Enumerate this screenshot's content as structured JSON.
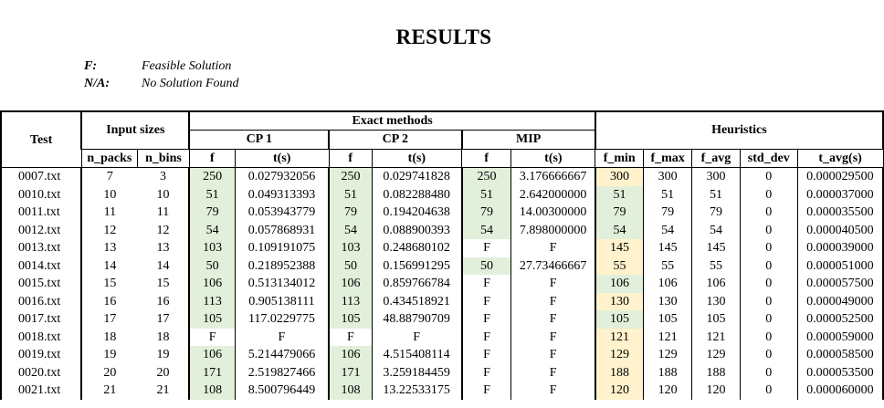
{
  "title": "RESULTS",
  "legend": [
    {
      "key": "F:",
      "value": "Feasible Solution"
    },
    {
      "key": "N/A:",
      "value": "No Solution Found"
    }
  ],
  "headers": {
    "test": "Test",
    "input_sizes": "Input sizes",
    "n_packs": "n_packs",
    "n_bins": "n_bins",
    "exact_methods": "Exact methods",
    "cp1": "CP 1",
    "cp2": "CP 2",
    "mip": "MIP",
    "f": "f",
    "t": "t(s)",
    "heuristics": "Heuristics",
    "f_min": "f_min",
    "f_max": "f_max",
    "f_avg": "f_avg",
    "std_dev": "std_dev",
    "t_avg": "t_avg(s)"
  },
  "colors": {
    "optimal_green": "#e2efda",
    "heuristic_yellow": "#fff2cc"
  },
  "rows": [
    {
      "test": "0007.txt",
      "n_packs": "7",
      "n_bins": "3",
      "cp1_f": "250",
      "cp1_t": "0.027932056",
      "cp2_f": "250",
      "cp2_t": "0.029741828",
      "mip_f": "250",
      "mip_t": "3.176666667",
      "f_min": "300",
      "f_max": "300",
      "f_avg": "300",
      "std_dev": "0",
      "t_avg": "0.000029500",
      "hl": {
        "cp1_f": "g",
        "cp2_f": "g",
        "mip_f": "g",
        "f_min": "y"
      }
    },
    {
      "test": "0010.txt",
      "n_packs": "10",
      "n_bins": "10",
      "cp1_f": "51",
      "cp1_t": "0.049313393",
      "cp2_f": "51",
      "cp2_t": "0.082288480",
      "mip_f": "51",
      "mip_t": "2.642000000",
      "f_min": "51",
      "f_max": "51",
      "f_avg": "51",
      "std_dev": "0",
      "t_avg": "0.000037000",
      "hl": {
        "cp1_f": "g",
        "cp2_f": "g",
        "mip_f": "g",
        "f_min": "g"
      }
    },
    {
      "test": "0011.txt",
      "n_packs": "11",
      "n_bins": "11",
      "cp1_f": "79",
      "cp1_t": "0.053943779",
      "cp2_f": "79",
      "cp2_t": "0.194204638",
      "mip_f": "79",
      "mip_t": "14.00300000",
      "f_min": "79",
      "f_max": "79",
      "f_avg": "79",
      "std_dev": "0",
      "t_avg": "0.000035500",
      "hl": {
        "cp1_f": "g",
        "cp2_f": "g",
        "mip_f": "g",
        "f_min": "g"
      }
    },
    {
      "test": "0012.txt",
      "n_packs": "12",
      "n_bins": "12",
      "cp1_f": "54",
      "cp1_t": "0.057868931",
      "cp2_f": "54",
      "cp2_t": "0.088900393",
      "mip_f": "54",
      "mip_t": "7.898000000",
      "f_min": "54",
      "f_max": "54",
      "f_avg": "54",
      "std_dev": "0",
      "t_avg": "0.000040500",
      "hl": {
        "cp1_f": "g",
        "cp2_f": "g",
        "mip_f": "g",
        "f_min": "g"
      }
    },
    {
      "test": "0013.txt",
      "n_packs": "13",
      "n_bins": "13",
      "cp1_f": "103",
      "cp1_t": "0.109191075",
      "cp2_f": "103",
      "cp2_t": "0.248680102",
      "mip_f": "F",
      "mip_t": "F",
      "f_min": "145",
      "f_max": "145",
      "f_avg": "145",
      "std_dev": "0",
      "t_avg": "0.000039000",
      "hl": {
        "cp1_f": "g",
        "cp2_f": "g",
        "f_min": "y"
      }
    },
    {
      "test": "0014.txt",
      "n_packs": "14",
      "n_bins": "14",
      "cp1_f": "50",
      "cp1_t": "0.218952388",
      "cp2_f": "50",
      "cp2_t": "0.156991295",
      "mip_f": "50",
      "mip_t": "27.73466667",
      "f_min": "55",
      "f_max": "55",
      "f_avg": "55",
      "std_dev": "0",
      "t_avg": "0.000051000",
      "hl": {
        "cp1_f": "g",
        "cp2_f": "g",
        "mip_f": "g",
        "f_min": "y"
      }
    },
    {
      "test": "0015.txt",
      "n_packs": "15",
      "n_bins": "15",
      "cp1_f": "106",
      "cp1_t": "0.513134012",
      "cp2_f": "106",
      "cp2_t": "0.859766784",
      "mip_f": "F",
      "mip_t": "F",
      "f_min": "106",
      "f_max": "106",
      "f_avg": "106",
      "std_dev": "0",
      "t_avg": "0.000057500",
      "hl": {
        "cp1_f": "g",
        "cp2_f": "g",
        "f_min": "g"
      }
    },
    {
      "test": "0016.txt",
      "n_packs": "16",
      "n_bins": "16",
      "cp1_f": "113",
      "cp1_t": "0.905138111",
      "cp2_f": "113",
      "cp2_t": "0.434518921",
      "mip_f": "F",
      "mip_t": "F",
      "f_min": "130",
      "f_max": "130",
      "f_avg": "130",
      "std_dev": "0",
      "t_avg": "0.000049000",
      "hl": {
        "cp1_f": "g",
        "cp2_f": "g",
        "f_min": "y"
      }
    },
    {
      "test": "0017.txt",
      "n_packs": "17",
      "n_bins": "17",
      "cp1_f": "105",
      "cp1_t": "117.0229775",
      "cp2_f": "105",
      "cp2_t": "48.88790709",
      "mip_f": "F",
      "mip_t": "F",
      "f_min": "105",
      "f_max": "105",
      "f_avg": "105",
      "std_dev": "0",
      "t_avg": "0.000052500",
      "hl": {
        "cp1_f": "g",
        "cp2_f": "g",
        "f_min": "g"
      }
    },
    {
      "test": "0018.txt",
      "n_packs": "18",
      "n_bins": "18",
      "cp1_f": "F",
      "cp1_t": "F",
      "cp2_f": "F",
      "cp2_t": "F",
      "mip_f": "F",
      "mip_t": "F",
      "f_min": "121",
      "f_max": "121",
      "f_avg": "121",
      "std_dev": "0",
      "t_avg": "0.000059000",
      "hl": {
        "f_min": "y"
      }
    },
    {
      "test": "0019.txt",
      "n_packs": "19",
      "n_bins": "19",
      "cp1_f": "106",
      "cp1_t": "5.214479066",
      "cp2_f": "106",
      "cp2_t": "4.515408114",
      "mip_f": "F",
      "mip_t": "F",
      "f_min": "129",
      "f_max": "129",
      "f_avg": "129",
      "std_dev": "0",
      "t_avg": "0.000058500",
      "hl": {
        "cp1_f": "g",
        "cp2_f": "g",
        "f_min": "y"
      }
    },
    {
      "test": "0020.txt",
      "n_packs": "20",
      "n_bins": "20",
      "cp1_f": "171",
      "cp1_t": "2.519827466",
      "cp2_f": "171",
      "cp2_t": "3.259184459",
      "mip_f": "F",
      "mip_t": "F",
      "f_min": "188",
      "f_max": "188",
      "f_avg": "188",
      "std_dev": "0",
      "t_avg": "0.000053500",
      "hl": {
        "cp1_f": "g",
        "cp2_f": "g",
        "f_min": "y"
      }
    },
    {
      "test": "0021.txt",
      "n_packs": "21",
      "n_bins": "21",
      "cp1_f": "108",
      "cp1_t": "8.500796449",
      "cp2_f": "108",
      "cp2_t": "13.22533175",
      "mip_f": "F",
      "mip_t": "F",
      "f_min": "120",
      "f_max": "120",
      "f_avg": "120",
      "std_dev": "0",
      "t_avg": "0.000060000",
      "hl": {
        "cp1_f": "g",
        "cp2_f": "g",
        "f_min": "y"
      }
    }
  ]
}
